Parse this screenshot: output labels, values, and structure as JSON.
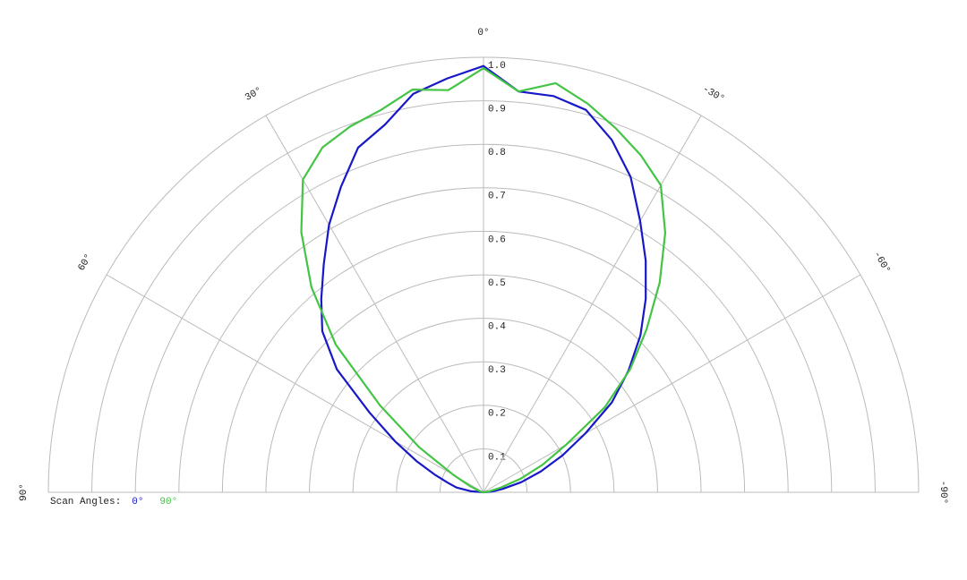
{
  "chart_data": {
    "type": "polar",
    "rlim": [
      0,
      1
    ],
    "rticks": [
      0.1,
      0.2,
      0.3,
      0.4,
      0.5,
      0.6,
      0.7,
      0.8,
      0.9,
      {
        "value": 1,
        "label": "1.0"
      }
    ],
    "thetalim": [
      -90,
      90
    ],
    "thetaticks": [
      {
        "value": 90,
        "label": "90°"
      },
      {
        "value": 60,
        "label": "60°"
      },
      {
        "value": 30,
        "label": "30°"
      },
      {
        "value": 0,
        "label": "0°"
      },
      {
        "value": -30,
        "label": "-30°"
      },
      {
        "value": -60,
        "label": "-60°"
      },
      {
        "value": -90,
        "label": "-90°"
      }
    ],
    "legend_title": "Scan Angles:",
    "x": [
      -90,
      -85,
      -80,
      -75,
      -70,
      -65,
      -60,
      -55,
      -50,
      -45,
      -40,
      -35,
      -30,
      -25,
      -20,
      -15,
      -10,
      -5,
      0,
      5,
      10,
      15,
      20,
      25,
      30,
      35,
      40,
      45,
      50,
      55,
      60,
      65,
      70,
      75,
      80,
      85,
      90
    ],
    "series": [
      {
        "name": "0°",
        "color": "#1818c8",
        "values": [
          0,
          0.02,
          0.045,
          0.09,
          0.14,
          0.2,
          0.27,
          0.36,
          0.435,
          0.51,
          0.58,
          0.65,
          0.72,
          0.8,
          0.862,
          0.91,
          0.925,
          0.925,
          0.98,
          0.955,
          0.93,
          0.875,
          0.843,
          0.775,
          0.71,
          0.64,
          0.58,
          0.524,
          0.44,
          0.32,
          0.235,
          0.17,
          0.12,
          0.085,
          0.063,
          0.03,
          0
        ]
      },
      {
        "name": "90°",
        "color": "#44c444",
        "values": [
          0,
          0.005,
          0.015,
          0.04,
          0.09,
          0.15,
          0.22,
          0.34,
          0.44,
          0.53,
          0.63,
          0.728,
          0.815,
          0.855,
          0.89,
          0.925,
          0.955,
          0.925,
          0.975,
          0.928,
          0.94,
          0.91,
          0.895,
          0.875,
          0.83,
          0.73,
          0.615,
          0.48,
          0.31,
          0.18,
          0.08,
          0.035,
          0.015,
          0.008,
          0.004,
          0.002,
          0
        ]
      }
    ]
  }
}
